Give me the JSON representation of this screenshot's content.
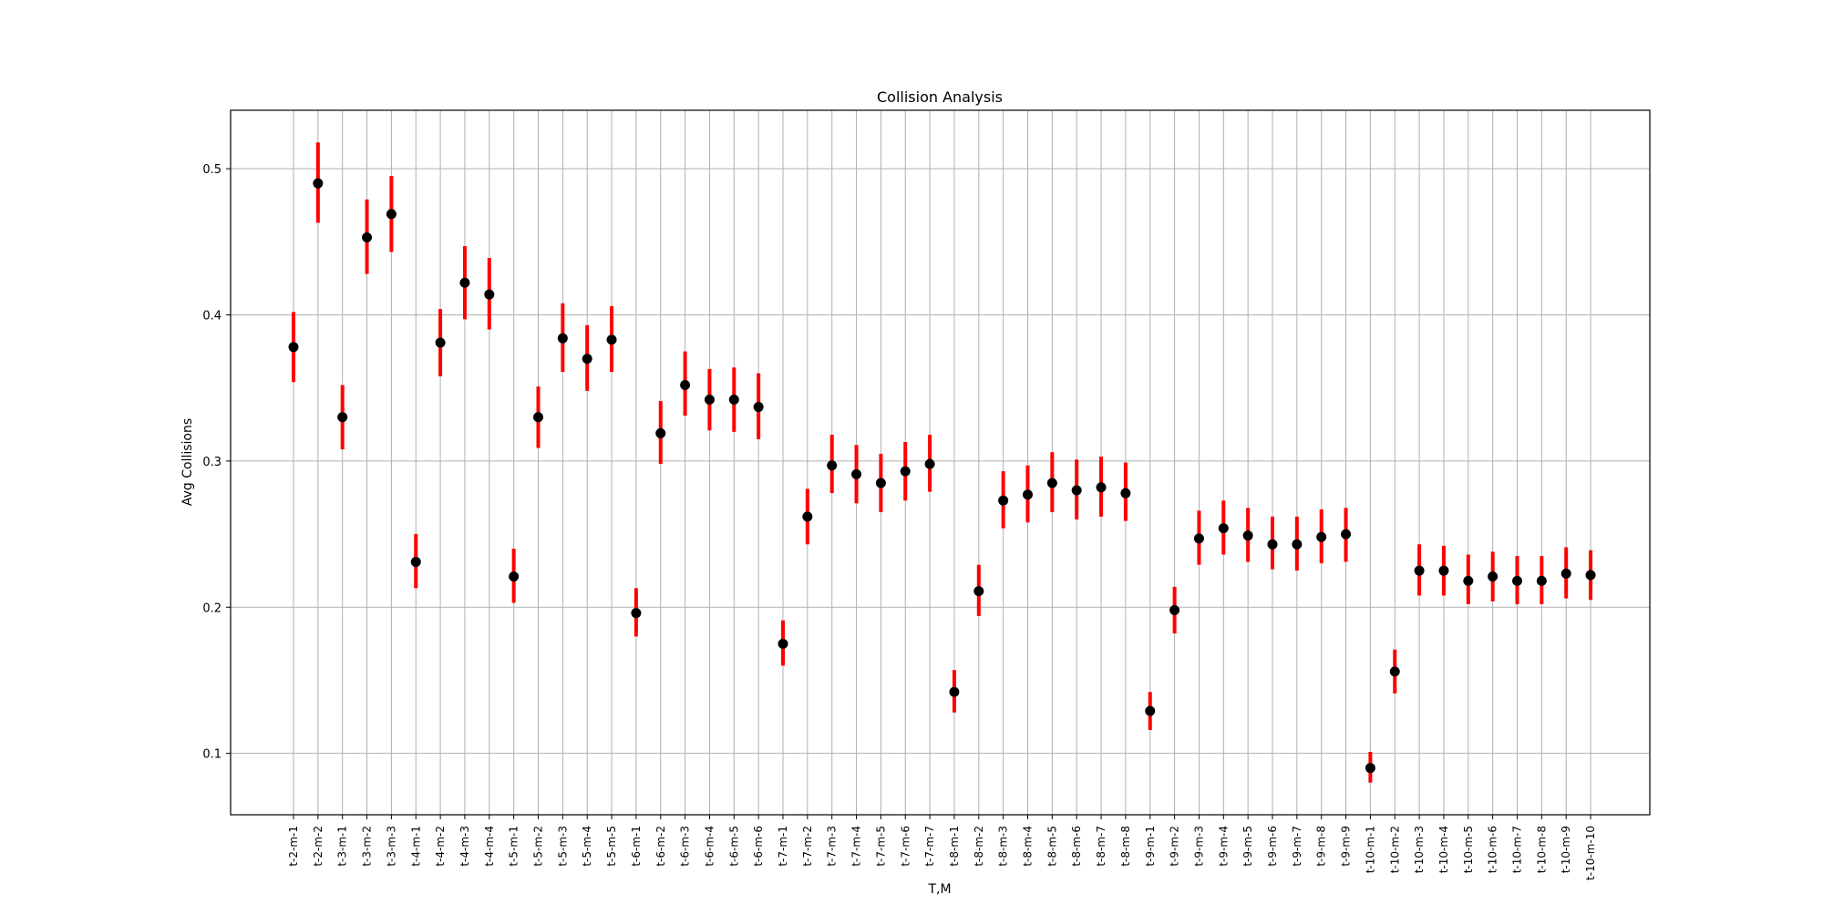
{
  "chart_data": {
    "type": "scatter",
    "title": "Collision Analysis",
    "xlabel": "T,M",
    "ylabel": "Avg Collisions",
    "ylim": [
      0.058,
      0.54
    ],
    "yticks": [
      0.1,
      0.2,
      0.3,
      0.4,
      0.5
    ],
    "ytick_labels": [
      "0.1",
      "0.2",
      "0.3",
      "0.4",
      "0.5"
    ],
    "grid": true,
    "legend": "none",
    "marker_color": "#000000",
    "errorbar_color": "#ff0000",
    "grid_color": "#b0b0b0",
    "categories": [
      "t-2-m-1",
      "t-2-m-2",
      "t-3-m-1",
      "t-3-m-2",
      "t-3-m-3",
      "t-4-m-1",
      "t-4-m-2",
      "t-4-m-3",
      "t-4-m-4",
      "t-5-m-1",
      "t-5-m-2",
      "t-5-m-3",
      "t-5-m-4",
      "t-5-m-5",
      "t-6-m-1",
      "t-6-m-2",
      "t-6-m-3",
      "t-6-m-4",
      "t-6-m-5",
      "t-6-m-6",
      "t-7-m-1",
      "t-7-m-2",
      "t-7-m-3",
      "t-7-m-4",
      "t-7-m-5",
      "t-7-m-6",
      "t-7-m-7",
      "t-8-m-1",
      "t-8-m-2",
      "t-8-m-3",
      "t-8-m-4",
      "t-8-m-5",
      "t-8-m-6",
      "t-8-m-7",
      "t-8-m-8",
      "t-9-m-1",
      "t-9-m-2",
      "t-9-m-3",
      "t-9-m-4",
      "t-9-m-5",
      "t-9-m-6",
      "t-9-m-7",
      "t-9-m-8",
      "t-9-m-9",
      "t-10-m-1",
      "t-10-m-2",
      "t-10-m-3",
      "t-10-m-4",
      "t-10-m-5",
      "t-10-m-6",
      "t-10-m-7",
      "t-10-m-8",
      "t-10-m-9",
      "t-10-m-10"
    ],
    "values": [
      0.378,
      0.49,
      0.33,
      0.453,
      0.469,
      0.231,
      0.381,
      0.422,
      0.414,
      0.221,
      0.33,
      0.384,
      0.37,
      0.383,
      0.196,
      0.319,
      0.352,
      0.342,
      0.342,
      0.337,
      0.175,
      0.262,
      0.297,
      0.291,
      0.285,
      0.293,
      0.298,
      0.142,
      0.211,
      0.273,
      0.277,
      0.285,
      0.28,
      0.282,
      0.278,
      0.129,
      0.198,
      0.247,
      0.254,
      0.249,
      0.243,
      0.243,
      0.248,
      0.25,
      0.09,
      0.156,
      0.225,
      0.225,
      0.218,
      0.221,
      0.218,
      0.218,
      0.223,
      0.222
    ],
    "lower": [
      0.354,
      0.463,
      0.308,
      0.428,
      0.443,
      0.213,
      0.358,
      0.397,
      0.39,
      0.203,
      0.309,
      0.361,
      0.348,
      0.361,
      0.18,
      0.298,
      0.331,
      0.321,
      0.32,
      0.315,
      0.16,
      0.243,
      0.278,
      0.271,
      0.265,
      0.273,
      0.279,
      0.128,
      0.194,
      0.254,
      0.258,
      0.265,
      0.26,
      0.262,
      0.259,
      0.116,
      0.182,
      0.229,
      0.236,
      0.231,
      0.226,
      0.225,
      0.23,
      0.231,
      0.08,
      0.141,
      0.208,
      0.208,
      0.202,
      0.204,
      0.202,
      0.202,
      0.206,
      0.205
    ],
    "upper": [
      0.402,
      0.518,
      0.352,
      0.479,
      0.495,
      0.25,
      0.404,
      0.447,
      0.439,
      0.24,
      0.351,
      0.408,
      0.393,
      0.406,
      0.213,
      0.341,
      0.375,
      0.363,
      0.364,
      0.36,
      0.191,
      0.281,
      0.318,
      0.311,
      0.305,
      0.313,
      0.318,
      0.157,
      0.229,
      0.293,
      0.297,
      0.306,
      0.301,
      0.303,
      0.299,
      0.142,
      0.214,
      0.266,
      0.273,
      0.268,
      0.262,
      0.262,
      0.267,
      0.268,
      0.101,
      0.171,
      0.243,
      0.242,
      0.236,
      0.238,
      0.235,
      0.235,
      0.241,
      0.239
    ]
  }
}
